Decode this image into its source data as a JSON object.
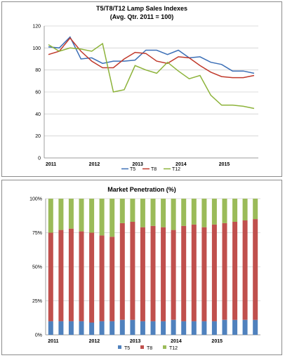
{
  "chart_data": [
    {
      "type": "line",
      "title": "T5/T8/T12 Lamp Sales Indexes",
      "subtitle": "(Avg. Qtr. 2011 = 100)",
      "xlabel": "",
      "ylabel": "",
      "ylim": [
        0,
        120
      ],
      "yticks": [
        0,
        20,
        40,
        60,
        80,
        100,
        120
      ],
      "year_labels": [
        "2011",
        "2012",
        "2013",
        "2014",
        "2015"
      ],
      "grid": true,
      "legend": "bottom",
      "series": [
        {
          "name": "T5",
          "color": "#3c6fb6",
          "values": [
            101,
            100,
            110,
            90,
            91,
            86,
            88,
            88,
            89,
            98,
            98,
            94,
            98,
            91,
            92,
            87,
            85,
            79,
            79,
            77
          ]
        },
        {
          "name": "T8",
          "color": "#c0392b",
          "values": [
            94,
            97,
            109,
            97,
            88,
            82,
            82,
            90,
            96,
            95,
            88,
            86,
            92,
            91,
            84,
            78,
            74,
            73,
            73,
            75
          ]
        },
        {
          "name": "T12",
          "color": "#8db33a",
          "values": [
            103,
            97,
            100,
            99,
            97,
            104,
            60,
            62,
            84,
            80,
            77,
            87,
            79,
            72,
            75,
            57,
            48,
            48,
            47,
            45
          ]
        }
      ]
    },
    {
      "type": "bar",
      "stacked": true,
      "title": "Market Penetration (%)",
      "xlabel": "",
      "ylabel": "",
      "ylim": [
        0,
        100
      ],
      "yticks": [
        "0%",
        "25%",
        "50%",
        "75%",
        "100%"
      ],
      "year_labels": [
        "2011",
        "2012",
        "2013",
        "2014",
        "2015"
      ],
      "grid": true,
      "legend": "bottom",
      "series": [
        {
          "name": "T5",
          "color": "#4f81bd",
          "values": [
            10,
            10,
            10,
            10,
            9,
            10,
            10,
            11,
            11,
            10,
            10,
            10,
            11,
            10,
            10,
            10,
            10,
            11,
            11,
            11,
            11
          ]
        },
        {
          "name": "T8",
          "color": "#c0504d",
          "values": [
            65,
            67,
            68,
            66,
            66,
            63,
            62,
            71,
            72,
            69,
            70,
            69,
            66,
            70,
            71,
            69,
            71,
            71,
            72,
            73,
            74
          ]
        },
        {
          "name": "T12",
          "color": "#9bbb59",
          "values": [
            25,
            23,
            22,
            24,
            25,
            27,
            28,
            18,
            17,
            21,
            20,
            21,
            23,
            20,
            19,
            21,
            19,
            18,
            17,
            16,
            15
          ]
        }
      ]
    }
  ]
}
